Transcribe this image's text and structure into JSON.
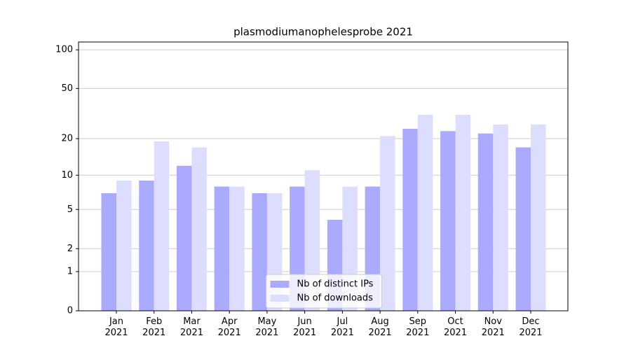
{
  "chart_data": {
    "type": "bar",
    "title": "plasmodiumanophelesprobe 2021",
    "categories": [
      "Jan\n2021",
      "Feb\n2021",
      "Mar\n2021",
      "Apr\n2021",
      "May\n2021",
      "Jun\n2021",
      "Jul\n2021",
      "Aug\n2021",
      "Sep\n2021",
      "Oct\n2021",
      "Nov\n2021",
      "Dec\n2021"
    ],
    "series": [
      {
        "name": "Nb of distinct IPs",
        "color": "#aaaaff",
        "values": [
          7,
          9,
          12,
          8,
          7,
          8,
          4,
          8,
          24,
          23,
          22,
          17
        ]
      },
      {
        "name": "Nb of downloads",
        "color": "#ddddff",
        "values": [
          9,
          19,
          17,
          8,
          7,
          11,
          8,
          21,
          31,
          31,
          26,
          26
        ]
      }
    ],
    "yscale": "log1p",
    "ylim": [
      0,
      115
    ],
    "yticks": [
      0,
      1,
      2,
      5,
      10,
      20,
      50,
      100
    ],
    "grid": true,
    "legend": "lower center"
  }
}
